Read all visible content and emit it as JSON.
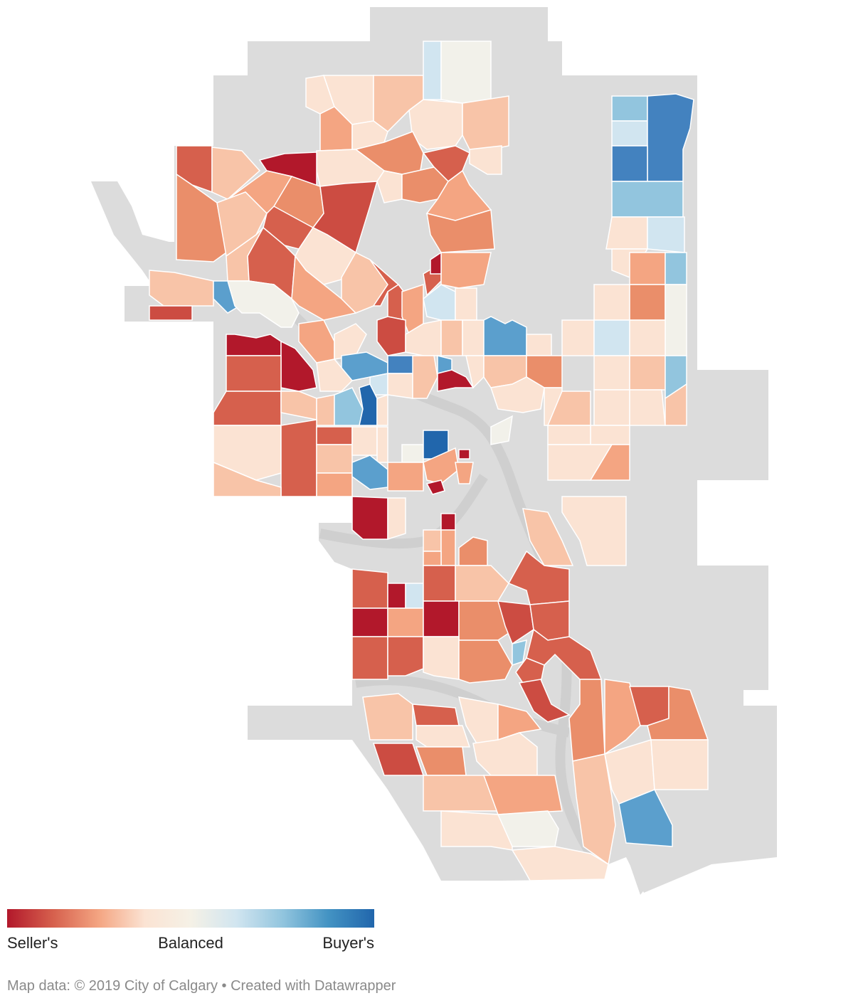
{
  "legend": {
    "left_label": "Seller's",
    "middle_label": "Balanced",
    "right_label": "Buyer's",
    "colors": [
      "#b2182b",
      "#d6604d",
      "#f4a582",
      "#fbe3d3",
      "#f5f1e6",
      "#d1e5f0",
      "#92c5de",
      "#4393c3",
      "#2166ac"
    ]
  },
  "map": {
    "no_data_color": "#dcdcdc",
    "river_color": "#cfcfcf",
    "border_color": "#ffffff",
    "colors": {
      "s1": "#b2182b",
      "s2": "#cc4c42",
      "s3": "#d6604d",
      "s4": "#ea8e6a",
      "s5": "#f4a582",
      "s6": "#f8c4a8",
      "s7": "#fbe3d3",
      "bal": "#f2f1ea",
      "b1": "#d1e5f0",
      "b2": "#92c5de",
      "b3": "#5b9fcd",
      "b4": "#4382bf",
      "b5": "#2166ac"
    }
  },
  "footer": {
    "credit": "Map data: © 2019 City of Calgary • Created with Datawrapper"
  }
}
